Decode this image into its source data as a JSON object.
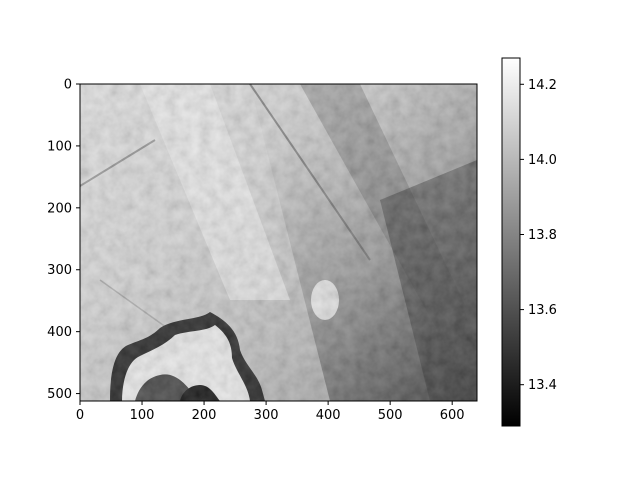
{
  "chart_data": {
    "type": "heatmap",
    "title": "",
    "xlabel": "",
    "ylabel": "",
    "image_shape": {
      "rows": 512,
      "cols": 640
    },
    "colormap": "gray",
    "xlim": [
      0,
      640
    ],
    "ylim": [
      512,
      0
    ],
    "x_ticks": [
      0,
      100,
      200,
      300,
      400,
      500,
      600
    ],
    "x_tick_labels": [
      "0",
      "100",
      "200",
      "300",
      "400",
      "500",
      "600"
    ],
    "y_ticks": [
      0,
      100,
      200,
      300,
      400,
      500
    ],
    "y_tick_labels": [
      "0",
      "100",
      "200",
      "300",
      "400",
      "500"
    ],
    "colorbar": {
      "vmin": 13.29,
      "vmax": 14.27,
      "ticks": [
        13.4,
        13.6,
        13.8,
        14.0,
        14.2
      ],
      "tick_labels": [
        "13.4",
        "13.6",
        "13.8",
        "14.0",
        "14.2"
      ]
    }
  }
}
